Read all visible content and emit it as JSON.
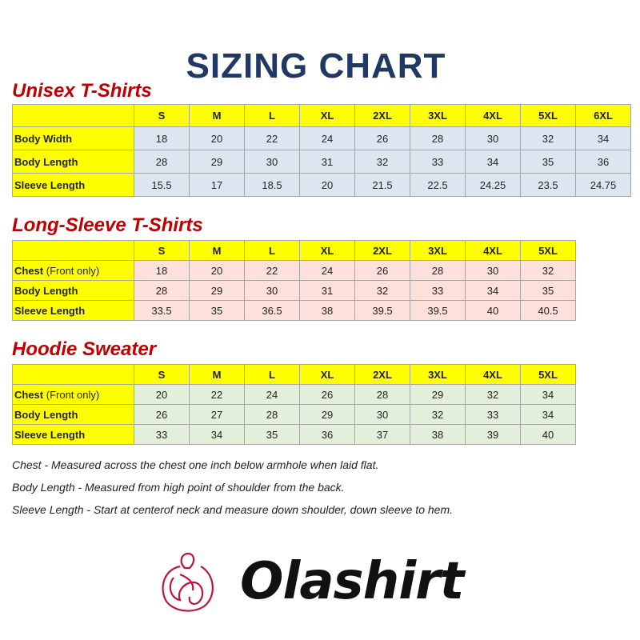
{
  "title": "SIZING CHART",
  "tables": [
    {
      "title": "Unisex T-Shirts",
      "sizes": [
        "S",
        "M",
        "L",
        "XL",
        "2XL",
        "3XL",
        "4XL",
        "5XL",
        "6XL"
      ],
      "rows": [
        {
          "label": "Body Width",
          "note": "",
          "values": [
            "18",
            "20",
            "22",
            "24",
            "26",
            "28",
            "30",
            "32",
            "34"
          ]
        },
        {
          "label": "Body Length",
          "note": "",
          "values": [
            "28",
            "29",
            "30",
            "31",
            "32",
            "33",
            "34",
            "35",
            "36"
          ]
        },
        {
          "label": "Sleeve Length",
          "note": "",
          "values": [
            "15.5",
            "17",
            "18.5",
            "20",
            "21.5",
            "22.5",
            "24.25",
            "23.5",
            "24.75"
          ]
        }
      ],
      "data_color": "#dce6f1"
    },
    {
      "title": "Long-Sleeve T-Shirts",
      "sizes": [
        "S",
        "M",
        "L",
        "XL",
        "2XL",
        "3XL",
        "4XL",
        "5XL"
      ],
      "rows": [
        {
          "label": "Chest",
          "note": "(Front only)",
          "values": [
            "18",
            "20",
            "22",
            "24",
            "26",
            "28",
            "30",
            "32"
          ]
        },
        {
          "label": "Body Length",
          "note": "",
          "values": [
            "28",
            "29",
            "30",
            "31",
            "32",
            "33",
            "34",
            "35"
          ]
        },
        {
          "label": "Sleeve Length",
          "note": "",
          "values": [
            "33.5",
            "35",
            "36.5",
            "38",
            "39.5",
            "39.5",
            "40",
            "40.5"
          ]
        }
      ],
      "data_color": "#fde0d9"
    },
    {
      "title": "Hoodie Sweater",
      "sizes": [
        "S",
        "M",
        "L",
        "XL",
        "2XL",
        "3XL",
        "4XL",
        "5XL"
      ],
      "rows": [
        {
          "label": "Chest",
          "note": "(Front only)",
          "values": [
            "20",
            "22",
            "24",
            "26",
            "28",
            "29",
            "32",
            "34"
          ]
        },
        {
          "label": "Body Length",
          "note": "",
          "values": [
            "26",
            "27",
            "28",
            "29",
            "30",
            "32",
            "33",
            "34"
          ]
        },
        {
          "label": "Sleeve Length",
          "note": "",
          "values": [
            "33",
            "34",
            "35",
            "36",
            "37",
            "38",
            "39",
            "40"
          ]
        }
      ],
      "data_color": "#e2efda"
    }
  ],
  "header_color": "#ffff00",
  "notes": [
    "Chest - Measured across the chest one inch below armhole when laid flat.",
    "Body Length - Measured from high point of shoulder from the back.",
    "Sleeve Length - Start at centerof neck and measure down shoulder, down sleeve to hem."
  ],
  "logo": {
    "brand": "Olashirt",
    "color": "#c0143c"
  }
}
